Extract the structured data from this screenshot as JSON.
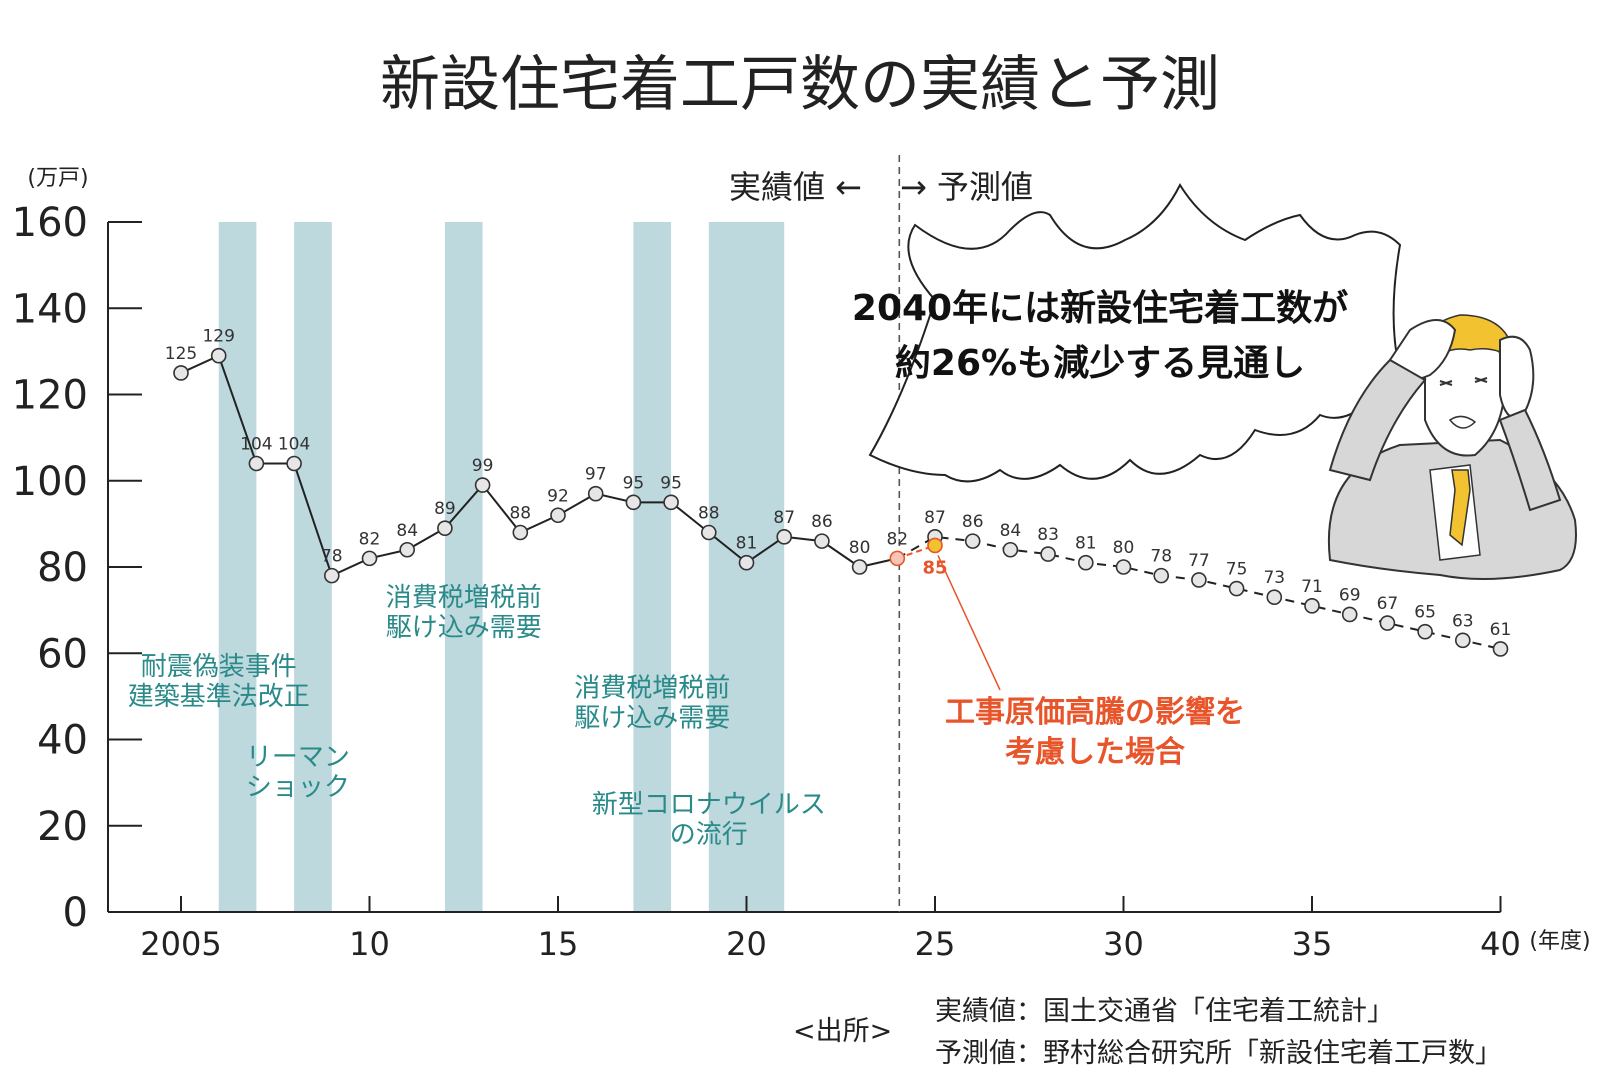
{
  "title": "新設住宅着工戸数の実績と予測",
  "colors": {
    "band": "#bed9de",
    "event_text": "#2a8a8a",
    "highlight": "#e8552b",
    "marker_fill": "#e6e6e6",
    "marker_2024": "#f7c5b8",
    "marker_2025_est": "#f2c230"
  },
  "chart_data": {
    "type": "line",
    "x_unit": "(年度)",
    "y_unit": "(万戸)",
    "ylim": [
      0,
      160
    ],
    "y_ticks": [
      0,
      20,
      40,
      60,
      80,
      100,
      120,
      140,
      160
    ],
    "xlim": [
      2003,
      2040
    ],
    "x_ticks": [
      {
        "x": 2005,
        "label": "2005"
      },
      {
        "x": 2010,
        "label": "10"
      },
      {
        "x": 2015,
        "label": "15"
      },
      {
        "x": 2020,
        "label": "20"
      },
      {
        "x": 2025,
        "label": "25"
      },
      {
        "x": 2030,
        "label": "30"
      },
      {
        "x": 2035,
        "label": "35"
      },
      {
        "x": 2040,
        "label": "40"
      }
    ],
    "divider_year": 2024,
    "actual_label": "実績値 ←",
    "forecast_label": "→ 予測値",
    "series": [
      {
        "name": "実績値",
        "style": "solid",
        "x": [
          2005,
          2006,
          2007,
          2008,
          2009,
          2010,
          2011,
          2012,
          2013,
          2014,
          2015,
          2016,
          2017,
          2018,
          2019,
          2020,
          2021,
          2022,
          2023,
          2024
        ],
        "values": [
          125,
          129,
          104,
          104,
          78,
          82,
          84,
          89,
          99,
          88,
          92,
          97,
          95,
          95,
          88,
          81,
          87,
          86,
          80,
          82
        ]
      },
      {
        "name": "予測値",
        "style": "dashed",
        "x": [
          2024,
          2025,
          2026,
          2027,
          2028,
          2029,
          2030,
          2031,
          2032,
          2033,
          2034,
          2035,
          2036,
          2037,
          2038,
          2039,
          2040
        ],
        "values": [
          82,
          87,
          86,
          84,
          83,
          81,
          80,
          78,
          77,
          75,
          73,
          71,
          69,
          67,
          65,
          63,
          61
        ]
      },
      {
        "name": "工事原価高騰の影響を考慮した場合",
        "style": "highlight",
        "x": [
          2025
        ],
        "values": [
          85
        ]
      }
    ],
    "shaded_periods": [
      {
        "start": 2006,
        "end": 2007
      },
      {
        "start": 2008,
        "end": 2009
      },
      {
        "start": 2012,
        "end": 2013
      },
      {
        "start": 2017,
        "end": 2018
      },
      {
        "start": 2019,
        "end": 2021
      }
    ],
    "annotations": [
      {
        "lines": [
          "耐震偽装事件",
          "建築基準法改正"
        ],
        "x": 2006.0,
        "y": 55
      },
      {
        "lines": [
          "リーマン",
          "ショック"
        ],
        "x": 2008.1,
        "y": 34
      },
      {
        "lines": [
          "消費税増税前",
          "駆け込み需要"
        ],
        "x": 2012.5,
        "y": 71
      },
      {
        "lines": [
          "消費税増税前",
          "駆け込み需要"
        ],
        "x": 2017.5,
        "y": 50
      },
      {
        "lines": [
          "新型コロナウイルス",
          "の流行"
        ],
        "x": 2019.0,
        "y": 23
      }
    ],
    "callout": {
      "lines": [
        "2040年には新設住宅着工数が",
        "約26%も減少する見通し"
      ]
    },
    "highlight_note": {
      "lines": [
        "工事原価高騰の影響を",
        "考慮した場合"
      ]
    }
  },
  "source": {
    "prefix": "<出所>",
    "lines": [
      "実績値：国土交通省「住宅着工統計」",
      "予測値：野村総合研究所「新設住宅着工戸数」"
    ]
  }
}
